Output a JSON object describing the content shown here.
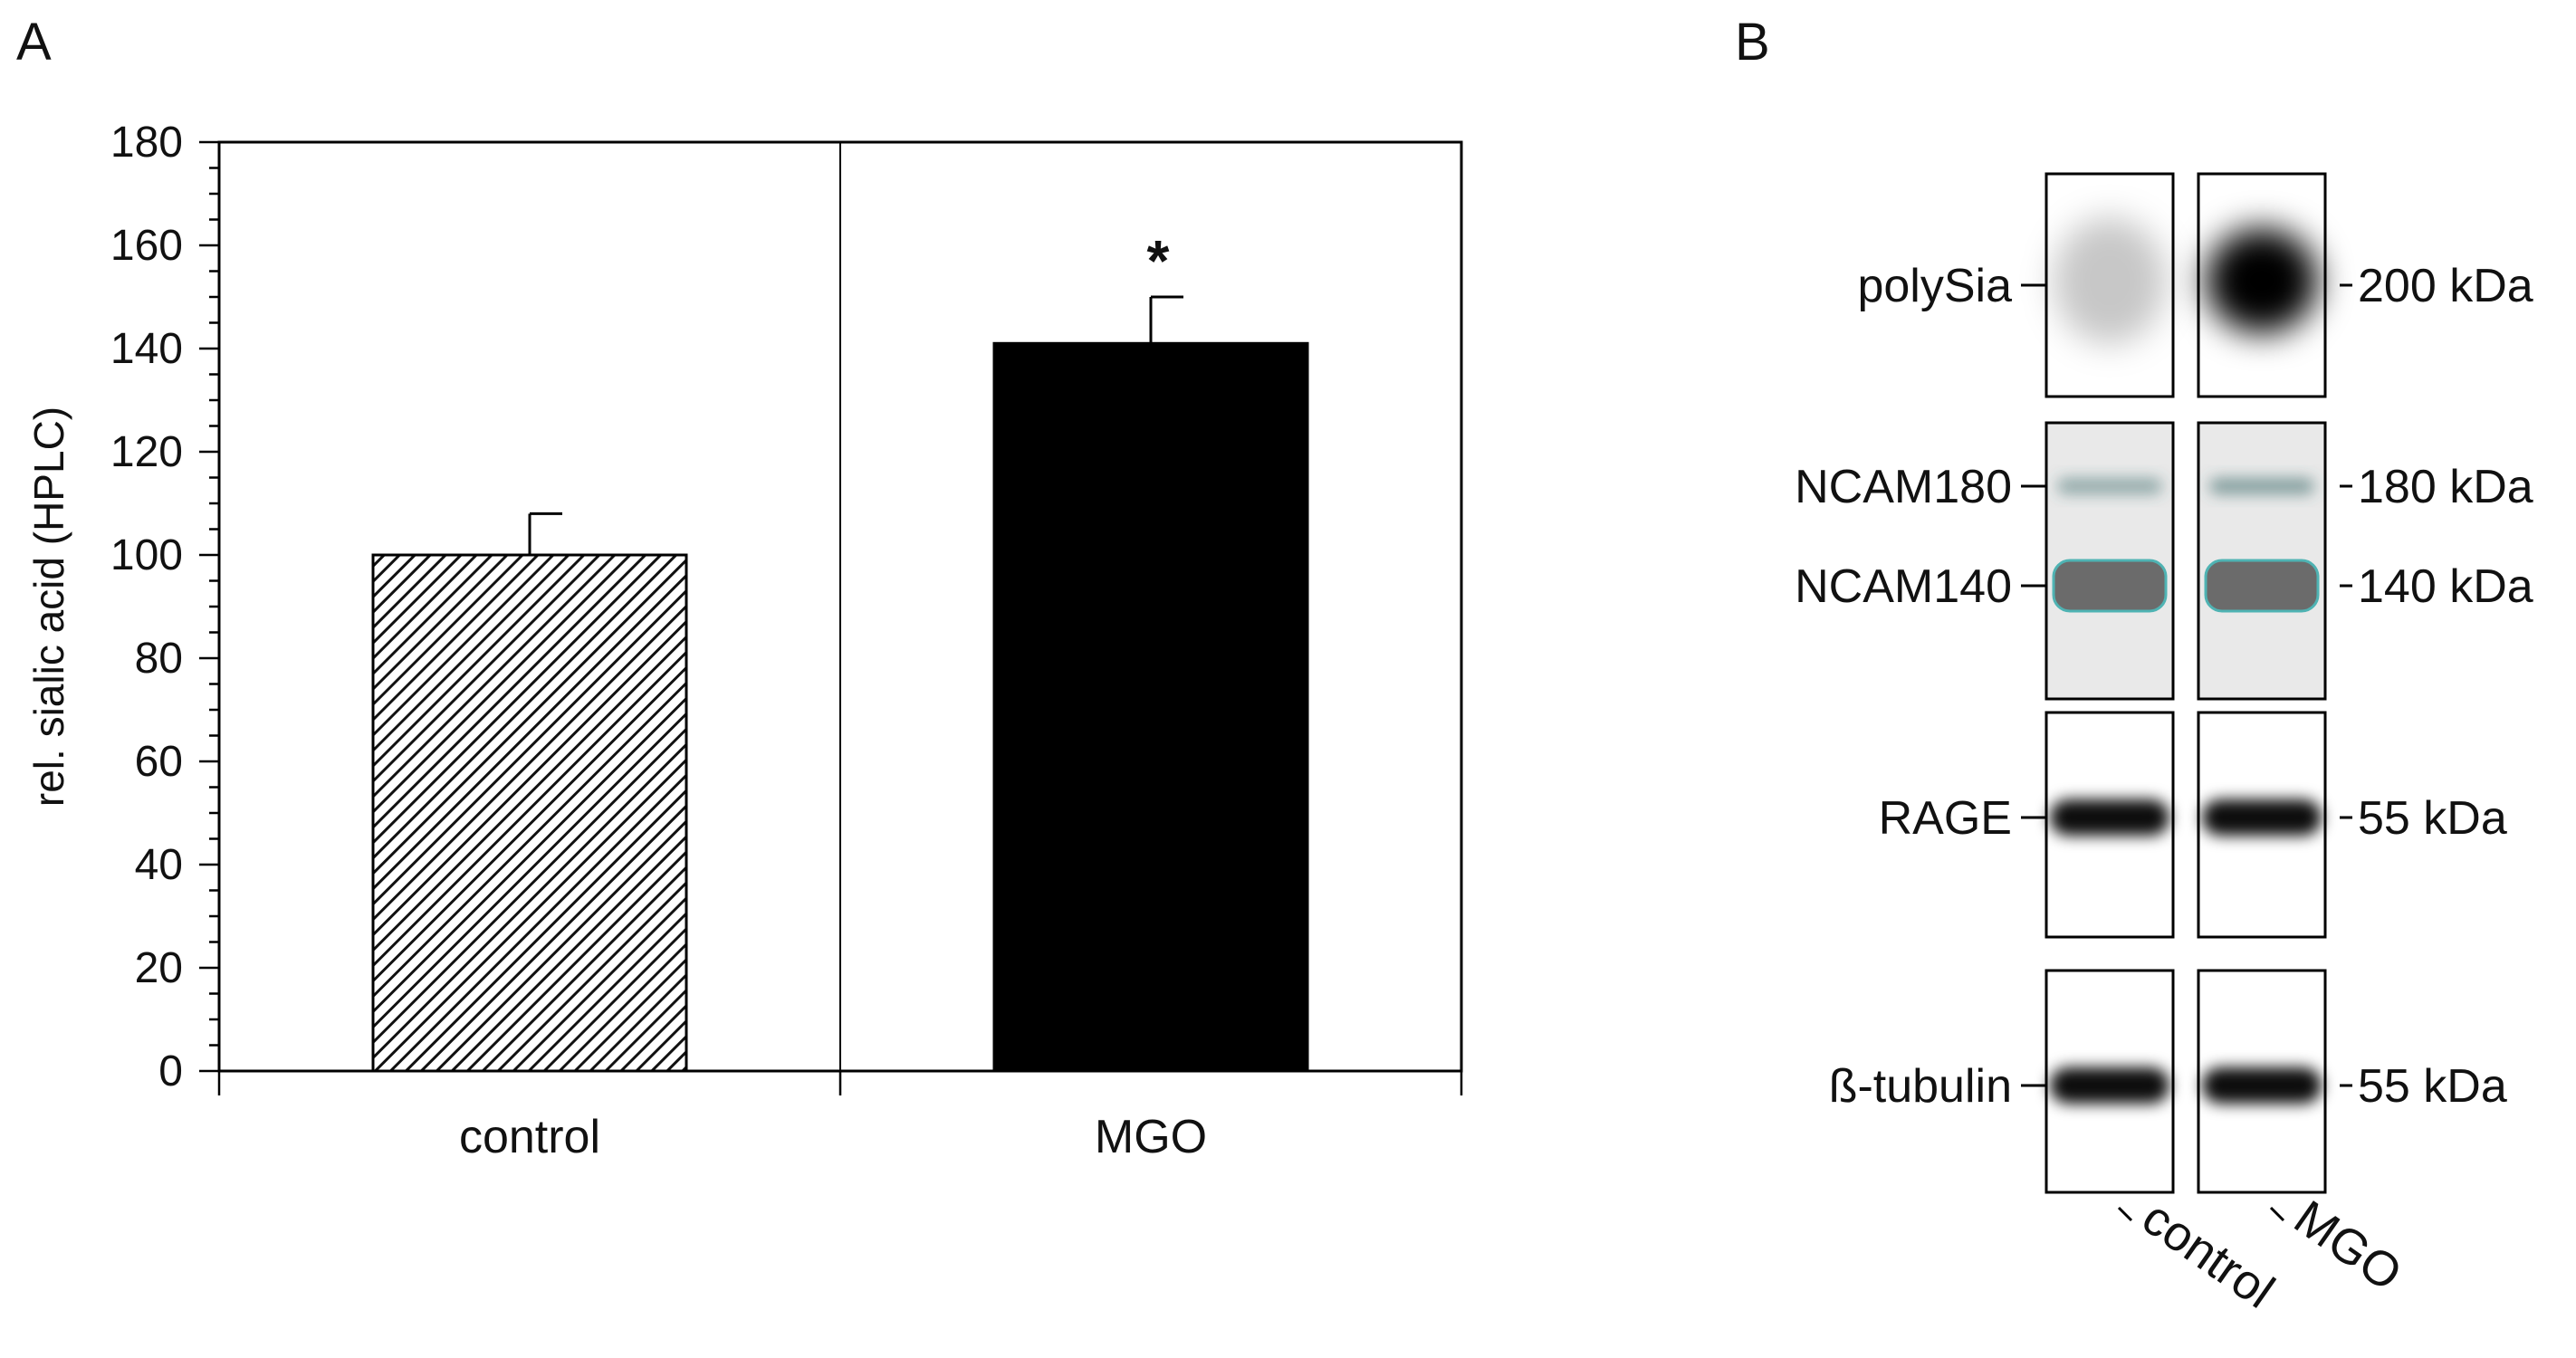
{
  "panels": {
    "a": {
      "letter": "A"
    },
    "b": {
      "letter": "B"
    }
  },
  "chart_data": {
    "type": "bar",
    "categories": [
      "control",
      "MGO"
    ],
    "values": [
      100,
      141
    ],
    "errors": [
      8,
      9
    ],
    "bar_fills": [
      "hatched",
      "solid black"
    ],
    "significance": [
      "",
      "*"
    ],
    "ylabel": "rel. sialic acid (HPLC)",
    "xlabel": "",
    "ylim": [
      0,
      180
    ],
    "yticks": [
      0,
      20,
      40,
      60,
      80,
      100,
      120,
      140,
      160,
      180
    ],
    "grid": false,
    "legend": "none",
    "colors": {
      "bar_control_stripe": "#111111",
      "bar_mgo": "#000000",
      "axis": "#000000"
    }
  },
  "western_blot": {
    "lanes": [
      "control",
      "MGO"
    ],
    "blots": [
      {
        "kind": "single",
        "bands": [
          {
            "name": "polySia",
            "marker": "200 kDa",
            "intensity": [
              0.22,
              1.0
            ]
          }
        ]
      },
      {
        "kind": "double",
        "bands": [
          {
            "name": "NCAM180",
            "marker": "180 kDa",
            "intensity": [
              0.5,
              0.6
            ]
          },
          {
            "name": "NCAM140",
            "marker": "140 kDa",
            "intensity": [
              0.85,
              0.85
            ]
          }
        ]
      },
      {
        "kind": "single",
        "bands": [
          {
            "name": "RAGE",
            "marker": "55 kDa",
            "intensity": [
              0.95,
              0.95
            ]
          }
        ]
      },
      {
        "kind": "single",
        "bands": [
          {
            "name": "ß-tubulin",
            "marker": "55 kDa",
            "intensity": [
              0.95,
              0.95
            ]
          }
        ]
      }
    ]
  }
}
